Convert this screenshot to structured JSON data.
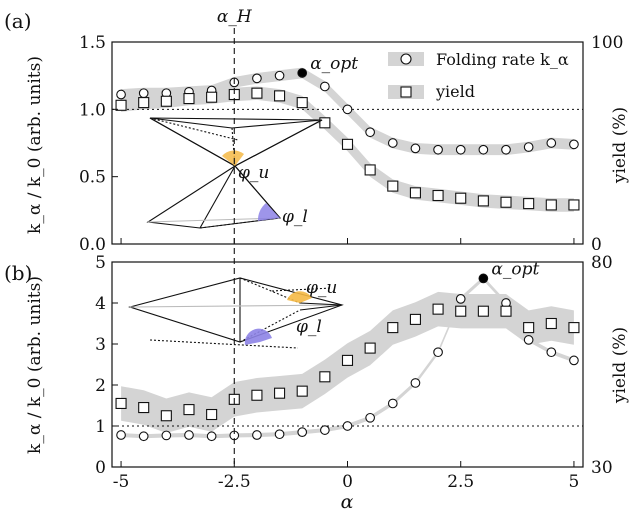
{
  "chart_data": [
    {
      "panel_label": "(a)",
      "type": "line",
      "top_label": "α_H",
      "ylabel": "k_α / k_0 (arb. units)",
      "ylabel_right": "yield (%)",
      "xlim": [
        -5.2,
        5.2
      ],
      "ylim": [
        0,
        1.5
      ],
      "ylim_right": [
        0,
        100
      ],
      "yticks": [
        "0.0",
        "0.5",
        "1.0",
        "1.5"
      ],
      "yticks_right": [
        "0",
        "100"
      ],
      "reference_line": 1.0,
      "vertical_line_x": -2.5,
      "opt_label": "α_opt",
      "opt_point": {
        "x": -1.0,
        "y": 1.27
      },
      "legend": [
        "Folding rate k_α",
        "yield"
      ],
      "inset_labels": [
        "φ_u",
        "φ_l"
      ],
      "series": [
        {
          "name": "Folding rate k_α",
          "marker": "circle",
          "x": [
            -5,
            -4.5,
            -4,
            -3.5,
            -3,
            -2.5,
            -2,
            -1.5,
            -1,
            -0.5,
            0,
            0.5,
            1,
            1.5,
            2,
            2.5,
            3,
            3.5,
            4,
            4.5,
            5
          ],
          "y": [
            1.11,
            1.12,
            1.12,
            1.13,
            1.14,
            1.2,
            1.23,
            1.25,
            1.27,
            1.17,
            1.0,
            0.83,
            0.75,
            0.71,
            0.7,
            0.7,
            0.7,
            0.7,
            0.72,
            0.75,
            0.74
          ],
          "band": 0.04
        },
        {
          "name": "yield",
          "marker": "square",
          "x": [
            -5,
            -4.5,
            -4,
            -3.5,
            -3,
            -2.5,
            -2,
            -1.5,
            -1,
            -0.5,
            0,
            0.5,
            1,
            1.5,
            2,
            2.5,
            3,
            3.5,
            4,
            4.5,
            5
          ],
          "y": [
            1.03,
            1.05,
            1.06,
            1.08,
            1.09,
            1.11,
            1.12,
            1.1,
            1.05,
            0.9,
            0.74,
            0.55,
            0.43,
            0.38,
            0.36,
            0.34,
            0.32,
            0.31,
            0.3,
            0.29,
            0.29
          ],
          "band": 0.05
        }
      ]
    },
    {
      "panel_label": "(b)",
      "type": "line",
      "xlabel": "α",
      "ylabel": "k_α / k_0 (arb. units)",
      "ylabel_right": "yield (%)",
      "xlim": [
        -5.2,
        5.2
      ],
      "ylim": [
        0,
        5
      ],
      "ylim_right": [
        30,
        80
      ],
      "xticks": [
        "-5",
        "-2.5",
        "0",
        "2.5",
        "5"
      ],
      "yticks": [
        "0",
        "1",
        "2",
        "3",
        "4",
        "5"
      ],
      "yticks_right": [
        "30",
        "80"
      ],
      "reference_line": 1.0,
      "vertical_line_x": -2.5,
      "opt_label": "α_opt",
      "opt_point": {
        "x": 3.0,
        "y": 4.6
      },
      "inset_labels": [
        "φ_u",
        "φ_l"
      ],
      "series": [
        {
          "name": "Folding rate k_α",
          "marker": "circle",
          "x": [
            -5,
            -4.5,
            -4,
            -3.5,
            -3,
            -2.5,
            -2,
            -1.5,
            -1,
            -0.5,
            0,
            0.5,
            1,
            1.5,
            2,
            2.5,
            3,
            3.5,
            4,
            4.5,
            5
          ],
          "y": [
            0.78,
            0.75,
            0.77,
            0.78,
            0.75,
            0.77,
            0.78,
            0.8,
            0.85,
            0.9,
            1.0,
            1.2,
            1.55,
            2.05,
            2.8,
            4.1,
            4.6,
            4.0,
            3.1,
            2.8,
            2.6
          ],
          "band": 0.05
        },
        {
          "name": "yield",
          "marker": "square",
          "x": [
            -5,
            -4.5,
            -4,
            -3.5,
            -3,
            -2.5,
            -2,
            -1.5,
            -1,
            -0.5,
            0,
            0.5,
            1,
            1.5,
            2,
            2.5,
            3,
            3.5,
            4,
            4.5,
            5
          ],
          "y": [
            1.55,
            1.45,
            1.25,
            1.4,
            1.28,
            1.65,
            1.75,
            1.8,
            1.85,
            2.2,
            2.6,
            2.9,
            3.4,
            3.6,
            3.85,
            3.8,
            3.8,
            3.8,
            3.4,
            3.5,
            3.4
          ],
          "band": 0.42
        }
      ]
    }
  ]
}
